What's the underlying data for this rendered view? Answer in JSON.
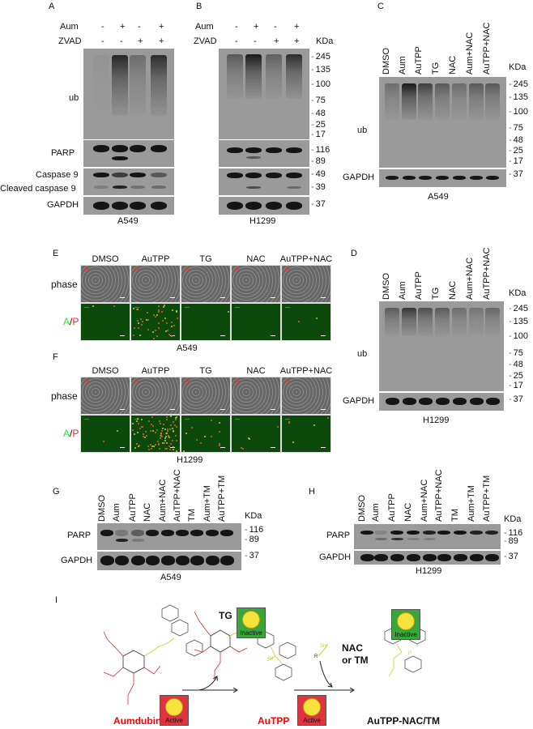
{
  "panels": {
    "A": {
      "letter": "A",
      "treat_rows": [
        {
          "label": "Aum",
          "values": [
            "-",
            "+",
            "-",
            "+"
          ]
        },
        {
          "label": "ZVAD",
          "values": [
            "-",
            "-",
            "+",
            "+"
          ]
        }
      ],
      "row_labels": [
        "ub",
        "PARP",
        "Caspase 9",
        "Cleaved caspase 9",
        "GAPDH"
      ],
      "cell_line": "A549"
    },
    "B": {
      "letter": "B",
      "treat_rows": [
        {
          "label": "Aum",
          "values": [
            "-",
            "+",
            "-",
            "+"
          ]
        },
        {
          "label": "ZVAD",
          "values": [
            "-",
            "-",
            "+",
            "+"
          ]
        }
      ],
      "unit": "KDa",
      "markers": [
        "245",
        "135",
        "100",
        "75",
        "48",
        "25",
        "17",
        "116",
        "89",
        "49",
        "39",
        "37"
      ],
      "cell_line": "H1299"
    },
    "C": {
      "letter": "C",
      "lanes": [
        "DMSO",
        "Aum",
        "AuTPP",
        "TG",
        "NAC",
        "Aum+NAC",
        "AuTPP+NAC"
      ],
      "unit": "KDa",
      "row_labels": [
        "ub",
        "GAPDH"
      ],
      "markers": [
        "245",
        "135",
        "100",
        "75",
        "48",
        "25",
        "17",
        "37"
      ],
      "cell_line": "A549"
    },
    "D": {
      "letter": "D",
      "lanes": [
        "DMSO",
        "Aum",
        "AuTPP",
        "TG",
        "NAC",
        "Aum+NAC",
        "AuTPP+NAC"
      ],
      "unit": "KDa",
      "row_labels": [
        "ub",
        "GAPDH"
      ],
      "markers": [
        "245",
        "135",
        "100",
        "75",
        "48",
        "25",
        "17",
        "37"
      ],
      "cell_line": "H1299"
    },
    "E": {
      "letter": "E",
      "columns": [
        "DMSO",
        "AuTPP",
        "TG",
        "NAC",
        "AuTPP+NAC"
      ],
      "row_labels": [
        "phase"
      ],
      "ap_a": "A",
      "ap_sep": "/",
      "ap_p": "P",
      "cell_line": "A549"
    },
    "F": {
      "letter": "F",
      "columns": [
        "DMSO",
        "AuTPP",
        "TG",
        "NAC",
        "AuTPP+NAC"
      ],
      "row_labels": [
        "phase"
      ],
      "ap_a": "A",
      "ap_sep": "/",
      "ap_p": "P",
      "cell_line": "H1299"
    },
    "G": {
      "letter": "G",
      "lanes": [
        "DMSO",
        "Aum",
        "AuTPP",
        "NAC",
        "Aum+NAC",
        "AuTPP+NAC",
        "TM",
        "Aum+TM",
        "AuTPP+TM"
      ],
      "unit": "KDa",
      "row_labels": [
        "PARP",
        "GAPDH"
      ],
      "markers": [
        "116",
        "89",
        "37"
      ],
      "cell_line": "A549"
    },
    "H": {
      "letter": "H",
      "lanes": [
        "DMSO",
        "Aum",
        "AuTPP",
        "NAC",
        "Aum+NAC",
        "AuTPP+NAC",
        "TM",
        "Aum+TM",
        "AuTPP+TM"
      ],
      "unit": "KDa",
      "row_labels": [
        "PARP",
        "GAPDH"
      ],
      "markers": [
        "116",
        "89",
        "37"
      ],
      "cell_line": "H1299"
    },
    "I": {
      "letter": "I",
      "compounds": {
        "aumdubin": "Aumdubin",
        "tg": "TG",
        "autpp": "AuTPP",
        "product": "AuTPP-NAC/TM"
      },
      "reagent": {
        "line1": "NAC",
        "line2": "or TM"
      },
      "active_label": "Active",
      "inactive_label": "Inactive",
      "atoms": {
        "au": "Au",
        "p": "P",
        "sh": "SH",
        "r": "R"
      }
    }
  },
  "colors": {
    "active_badge": "#e0323f",
    "inactive_badge": "#3aa53a",
    "compound_active_text": "#ff0000",
    "ap_a": "#33dd33",
    "ap_p": "#ff2222",
    "ap_background": "#0c4a0c"
  }
}
